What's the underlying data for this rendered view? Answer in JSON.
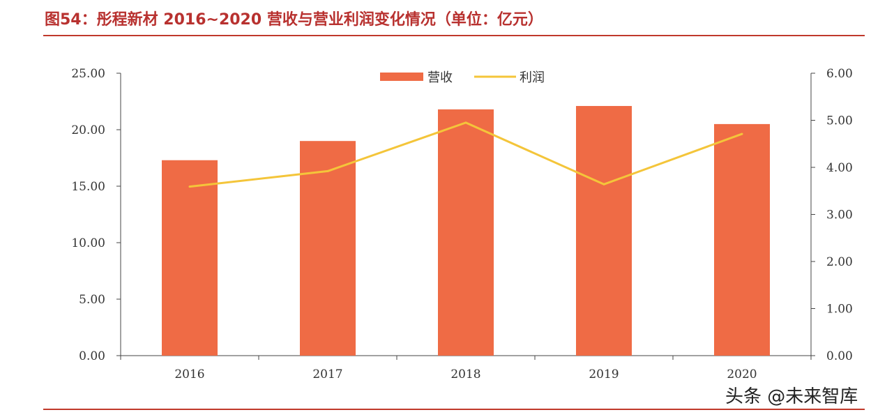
{
  "title": "图54：彤程新材 2016~2020 营收与营业利润变化情况（单位：亿元）",
  "watermark": "头条 @未来智库",
  "colors": {
    "title": "#b8312f",
    "bar": "#ef6b45",
    "line": "#f4c53a",
    "rule": "#c0392b"
  },
  "chart_data": {
    "type": "bar",
    "categories": [
      "2016",
      "2017",
      "2018",
      "2019",
      "2020"
    ],
    "series": [
      {
        "name": "营收",
        "type": "bar",
        "axis": "left",
        "values": [
          17.3,
          19.0,
          21.8,
          22.1,
          20.5
        ]
      },
      {
        "name": "利润",
        "type": "line",
        "axis": "right",
        "values": [
          3.59,
          3.92,
          4.95,
          3.64,
          4.71
        ]
      }
    ],
    "y_left": {
      "min": 0,
      "max": 25,
      "ticks": [
        "0.00",
        "5.00",
        "10.00",
        "15.00",
        "20.00",
        "25.00"
      ]
    },
    "y_right": {
      "min": 0,
      "max": 6,
      "ticks": [
        "0.00",
        "1.00",
        "2.00",
        "3.00",
        "4.00",
        "5.00",
        "6.00"
      ]
    },
    "legend_position": "top-center",
    "grid": false
  }
}
